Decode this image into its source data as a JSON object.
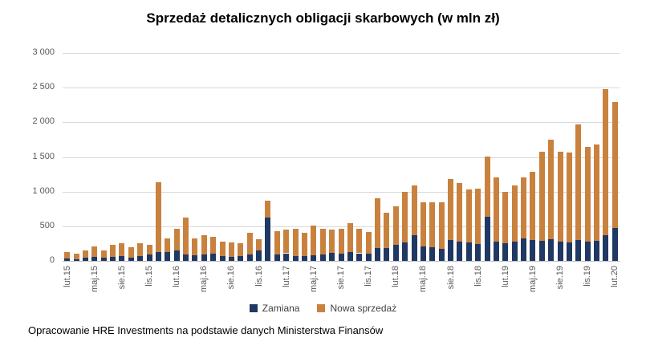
{
  "title": "Sprzedaż detalicznych obligacji skarbowych (w mln zł)",
  "source": "Opracowanie HRE Investments na podstawie danych Ministerstwa Finansów",
  "legend": [
    {
      "label": "Zamiana",
      "color": "#1f3864"
    },
    {
      "label": "Nowa sprzedaż",
      "color": "#c9813e"
    }
  ],
  "chart_data": {
    "type": "bar",
    "stacked": true,
    "title": "Sprzedaż detalicznych obligacji skarbowych (w mln zł)",
    "xlabel": "",
    "ylabel": "",
    "ylim": [
      0,
      3000
    ],
    "ytick_step": 500,
    "ytick_labels": [
      "0",
      "500",
      "1 000",
      "1 500",
      "2 000",
      "2 500",
      "3 000"
    ],
    "grid": true,
    "legend_position": "bottom",
    "x_label_every": 3,
    "categories": [
      "lut.15",
      "mar.15",
      "kwi.15",
      "maj.15",
      "cze.15",
      "lip.15",
      "sie.15",
      "wrz.15",
      "paź.15",
      "lis.15",
      "gru.15",
      "sty.16",
      "lut.16",
      "mar.16",
      "kwi.16",
      "maj.16",
      "cze.16",
      "lip.16",
      "sie.16",
      "wrz.16",
      "paź.16",
      "lis.16",
      "gru.16",
      "sty.17",
      "lut.17",
      "mar.17",
      "kwi.17",
      "maj.17",
      "cze.17",
      "lip.17",
      "sie.17",
      "wrz.17",
      "paź.17",
      "lis.17",
      "gru.17",
      "sty.18",
      "lut.18",
      "mar.18",
      "kwi.18",
      "maj.18",
      "cze.18",
      "lip.18",
      "sie.18",
      "wrz.18",
      "paź.18",
      "lis.18",
      "gru.18",
      "sty.19",
      "lut.19",
      "mar.19",
      "kwi.19",
      "maj.19",
      "cze.19",
      "lip.19",
      "sie.19",
      "wrz.19",
      "paź.19",
      "lis.19",
      "gru.19",
      "sty.20",
      "lut.20"
    ],
    "series": [
      {
        "name": "Zamiana",
        "color": "#1f3864",
        "values": [
          35,
          28,
          45,
          55,
          45,
          60,
          65,
          50,
          75,
          95,
          130,
          125,
          150,
          95,
          85,
          90,
          100,
          75,
          60,
          70,
          95,
          150,
          620,
          90,
          110,
          75,
          65,
          85,
          90,
          120,
          105,
          130,
          110,
          105,
          180,
          190,
          235,
          265,
          370,
          210,
          195,
          170,
          300,
          280,
          265,
          245,
          640,
          280,
          260,
          280,
          330,
          300,
          290,
          310,
          280,
          270,
          300,
          280,
          290,
          370,
          480
        ]
      },
      {
        "name": "Nowa sprzedaż",
        "color": "#c9813e",
        "values": [
          95,
          77,
          110,
          150,
          105,
          175,
          185,
          150,
          180,
          140,
          1005,
          195,
          310,
          535,
          245,
          280,
          245,
          205,
          205,
          185,
          310,
          160,
          250,
          340,
          345,
          385,
          335,
          425,
          375,
          335,
          360,
          420,
          355,
          310,
          720,
          510,
          555,
          735,
          720,
          640,
          650,
          680,
          880,
          840,
          765,
          795,
          870,
          920,
          740,
          810,
          880,
          980,
          1290,
          1440,
          1300,
          1290,
          1670,
          1370,
          1390,
          2110,
          1810
        ]
      }
    ]
  }
}
